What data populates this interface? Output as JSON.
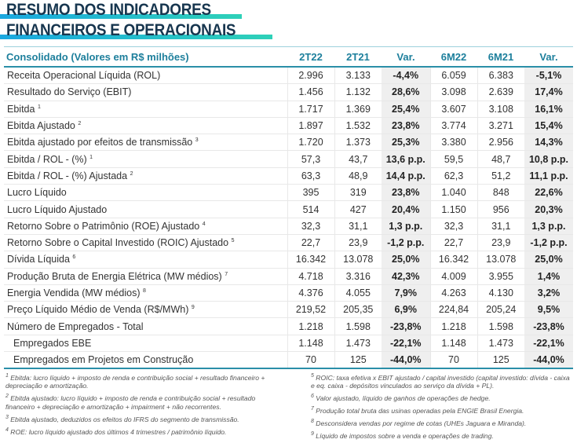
{
  "title": {
    "line1": "RESUMO DOS INDICADORES",
    "line2": "FINANCEIROS E OPERACIONAIS"
  },
  "colors": {
    "title": "#17364f",
    "header": "#1d7f9c",
    "accent_from": "#1aa8e0",
    "accent_to": "#2ed1b8"
  },
  "table": {
    "headers": [
      "Consolidado (Valores em R$ milhões)",
      "2T22",
      "2T21",
      "Var.",
      "6M22",
      "6M21",
      "Var."
    ],
    "rows": [
      {
        "label": "Receita Operacional Líquida (ROL)",
        "sup": "",
        "cells": [
          "2.996",
          "3.133",
          "-4,4%",
          "6.059",
          "6.383",
          "-5,1%"
        ]
      },
      {
        "label": "Resultado do Serviço (EBIT)",
        "sup": "",
        "cells": [
          "1.456",
          "1.132",
          "28,6%",
          "3.098",
          "2.639",
          "17,4%"
        ]
      },
      {
        "label": "Ebitda",
        "sup": "1",
        "cells": [
          "1.717",
          "1.369",
          "25,4%",
          "3.607",
          "3.108",
          "16,1%"
        ]
      },
      {
        "label": "Ebitda Ajustado",
        "sup": "2",
        "cells": [
          "1.897",
          "1.532",
          "23,8%",
          "3.774",
          "3.271",
          "15,4%"
        ]
      },
      {
        "label": "Ebitda ajustado por efeitos de transmissão",
        "sup": "3",
        "cells": [
          "1.720",
          "1.373",
          "25,3%",
          "3.380",
          "2.956",
          "14,3%"
        ]
      },
      {
        "label": "Ebitda / ROL - (%)",
        "sup": "1",
        "cells": [
          "57,3",
          "43,7",
          "13,6 p.p.",
          "59,5",
          "48,7",
          "10,8 p.p."
        ]
      },
      {
        "label": "Ebitda / ROL - (%) Ajustada",
        "sup": "2",
        "cells": [
          "63,3",
          "48,9",
          "14,4 p.p.",
          "62,3",
          "51,2",
          "11,1 p.p."
        ]
      },
      {
        "label": "Lucro Líquido",
        "sup": "",
        "cells": [
          "395",
          "319",
          "23,8%",
          "1.040",
          "848",
          "22,6%"
        ]
      },
      {
        "label": "Lucro Líquido Ajustado",
        "sup": "",
        "cells": [
          "514",
          "427",
          "20,4%",
          "1.150",
          "956",
          "20,3%"
        ]
      },
      {
        "label": "Retorno Sobre o Patrimônio (ROE) Ajustado",
        "sup": "4",
        "cells": [
          "32,3",
          "31,1",
          "1,3 p.p.",
          "32,3",
          "31,1",
          "1,3 p.p."
        ]
      },
      {
        "label": "Retorno Sobre o Capital Investido (ROIC) Ajustado",
        "sup": "5",
        "cells": [
          "22,7",
          "23,9",
          "-1,2 p.p.",
          "22,7",
          "23,9",
          "-1,2 p.p."
        ]
      },
      {
        "label": "Dívida Líquida",
        "sup": "6",
        "cells": [
          "16.342",
          "13.078",
          "25,0%",
          "16.342",
          "13.078",
          "25,0%"
        ]
      },
      {
        "label": "Produção Bruta de Energia Elétrica (MW médios)",
        "sup": "7",
        "cells": [
          "4.718",
          "3.316",
          "42,3%",
          "4.009",
          "3.955",
          "1,4%"
        ]
      },
      {
        "label": "Energia Vendida (MW médios)",
        "sup": "8",
        "cells": [
          "4.376",
          "4.055",
          "7,9%",
          "4.263",
          "4.130",
          "3,2%"
        ]
      },
      {
        "label": "Preço Líquido Médio de Venda (R$/MWh)",
        "sup": "9",
        "cells": [
          "219,52",
          "205,35",
          "6,9%",
          "224,84",
          "205,24",
          "9,5%"
        ]
      },
      {
        "label": "Número de Empregados - Total",
        "sup": "",
        "cells": [
          "1.218",
          "1.598",
          "-23,8%",
          "1.218",
          "1.598",
          "-23,8%"
        ]
      },
      {
        "label": "Empregados EBE",
        "sup": "",
        "indent": true,
        "cells": [
          "1.148",
          "1.473",
          "-22,1%",
          "1.148",
          "1.473",
          "-22,1%"
        ]
      },
      {
        "label": "Empregados em Projetos em Construção",
        "sup": "",
        "indent": true,
        "cells": [
          "70",
          "125",
          "-44,0%",
          "70",
          "125",
          "-44,0%"
        ]
      }
    ]
  },
  "notes_left": [
    {
      "num": "1",
      "text": "Ebitda: lucro líquido + imposto de renda e contribuição social + resultado financeiro + depreciação e amortização."
    },
    {
      "num": "2",
      "text": "Ebitda ajustado: lucro líquido + imposto de renda e contribuição social + resultado financeiro + depreciação e amortização + impairment + não recorrentes."
    },
    {
      "num": "3",
      "text": "Ebitda ajustado, deduzidos os efeitos do IFRS do segmento de transmissão."
    },
    {
      "num": "4",
      "text": "ROE: lucro líquido ajustado dos últimos 4 trimestres / patrimônio líquido."
    }
  ],
  "notes_right": [
    {
      "num": "5",
      "text": "ROIC: taxa efetiva x EBIT ajustado / capital investido (capital investido: dívida - caixa e eq. caixa - depósitos vinculados ao serviço da dívida + PL)."
    },
    {
      "num": "6",
      "text": "Valor ajustado, líquido de ganhos de operações de hedge."
    },
    {
      "num": "7",
      "text": "Produção total bruta das usinas operadas pela ENGIE Brasil Energia."
    },
    {
      "num": "8",
      "text": "Desconsidera vendas por regime de cotas (UHEs Jaguara e Miranda)."
    },
    {
      "num": "9",
      "text": "Líquido de impostos sobre a venda e operações de trading."
    }
  ]
}
